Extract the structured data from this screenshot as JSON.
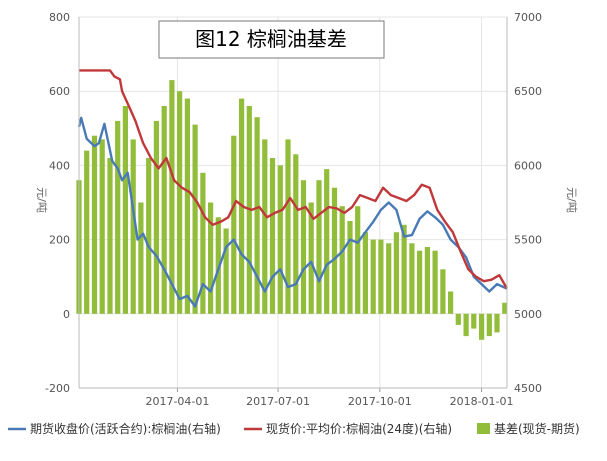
{
  "chart_data": {
    "type": "bar+line",
    "title": "图12 棕榈油基差",
    "y_left": {
      "label": "元/吨",
      "ylim": [
        -200,
        800
      ],
      "ticks": [
        -200,
        0,
        200,
        400,
        600,
        800
      ]
    },
    "y_right": {
      "label": "元/吨",
      "ylim": [
        4500,
        7000
      ],
      "ticks": [
        4500,
        5000,
        5500,
        6000,
        6500,
        7000
      ]
    },
    "x_axis": {
      "range": [
        "2017-01-02",
        "2018-01-24"
      ],
      "tick_labels": [
        "2017-04-01",
        "2017-07-01",
        "2017-10-01",
        "2018-01-01"
      ]
    },
    "grid": true,
    "legend_position": "bottom",
    "series": [
      {
        "name": "期货收盘价(活跃合约):棕榈油(右轴)",
        "type": "line",
        "axis": "right",
        "color": "#4a7ab5",
        "points": [
          [
            "2017-01-02",
            6260
          ],
          [
            "2017-01-04",
            6320
          ],
          [
            "2017-01-09",
            6180
          ],
          [
            "2017-01-16",
            6130
          ],
          [
            "2017-01-20",
            6150
          ],
          [
            "2017-01-25",
            6280
          ],
          [
            "2017-02-01",
            6030
          ],
          [
            "2017-02-06",
            5980
          ],
          [
            "2017-02-10",
            5900
          ],
          [
            "2017-02-15",
            5950
          ],
          [
            "2017-02-20",
            5700
          ],
          [
            "2017-02-24",
            5500
          ],
          [
            "2017-03-01",
            5540
          ],
          [
            "2017-03-06",
            5450
          ],
          [
            "2017-03-13",
            5390
          ],
          [
            "2017-03-20",
            5300
          ],
          [
            "2017-03-27",
            5200
          ],
          [
            "2017-04-03",
            5100
          ],
          [
            "2017-04-10",
            5120
          ],
          [
            "2017-04-17",
            5050
          ],
          [
            "2017-04-24",
            5200
          ],
          [
            "2017-05-01",
            5150
          ],
          [
            "2017-05-08",
            5300
          ],
          [
            "2017-05-15",
            5450
          ],
          [
            "2017-05-22",
            5500
          ],
          [
            "2017-05-29",
            5400
          ],
          [
            "2017-06-05",
            5350
          ],
          [
            "2017-06-12",
            5250
          ],
          [
            "2017-06-19",
            5150
          ],
          [
            "2017-06-26",
            5250
          ],
          [
            "2017-07-03",
            5300
          ],
          [
            "2017-07-10",
            5180
          ],
          [
            "2017-07-17",
            5200
          ],
          [
            "2017-07-24",
            5300
          ],
          [
            "2017-07-31",
            5350
          ],
          [
            "2017-08-07",
            5220
          ],
          [
            "2017-08-14",
            5330
          ],
          [
            "2017-08-21",
            5370
          ],
          [
            "2017-08-28",
            5420
          ],
          [
            "2017-09-04",
            5500
          ],
          [
            "2017-09-11",
            5480
          ],
          [
            "2017-09-18",
            5550
          ],
          [
            "2017-09-25",
            5620
          ],
          [
            "2017-10-02",
            5700
          ],
          [
            "2017-10-09",
            5750
          ],
          [
            "2017-10-16",
            5700
          ],
          [
            "2017-10-23",
            5520
          ],
          [
            "2017-10-30",
            5530
          ],
          [
            "2017-11-06",
            5640
          ],
          [
            "2017-11-13",
            5690
          ],
          [
            "2017-11-20",
            5650
          ],
          [
            "2017-11-27",
            5600
          ],
          [
            "2017-12-04",
            5500
          ],
          [
            "2017-12-11",
            5450
          ],
          [
            "2017-12-18",
            5380
          ],
          [
            "2017-12-25",
            5250
          ],
          [
            "2018-01-01",
            5200
          ],
          [
            "2018-01-08",
            5150
          ],
          [
            "2018-01-15",
            5200
          ],
          [
            "2018-01-24",
            5170
          ]
        ]
      },
      {
        "name": "现货价:平均价:棕榈油(24度)(右轴)",
        "type": "line",
        "axis": "right",
        "color": "#c0383a",
        "points": [
          [
            "2017-01-02",
            6640
          ],
          [
            "2017-01-30",
            6640
          ],
          [
            "2017-02-03",
            6600
          ],
          [
            "2017-02-08",
            6580
          ],
          [
            "2017-02-10",
            6500
          ],
          [
            "2017-02-16",
            6400
          ],
          [
            "2017-02-22",
            6300
          ],
          [
            "2017-03-01",
            6150
          ],
          [
            "2017-03-08",
            6050
          ],
          [
            "2017-03-15",
            5980
          ],
          [
            "2017-03-22",
            6050
          ],
          [
            "2017-03-29",
            5900
          ],
          [
            "2017-04-05",
            5850
          ],
          [
            "2017-04-12",
            5820
          ],
          [
            "2017-04-19",
            5750
          ],
          [
            "2017-04-26",
            5650
          ],
          [
            "2017-05-03",
            5600
          ],
          [
            "2017-05-10",
            5620
          ],
          [
            "2017-05-17",
            5650
          ],
          [
            "2017-05-24",
            5760
          ],
          [
            "2017-05-31",
            5720
          ],
          [
            "2017-06-07",
            5700
          ],
          [
            "2017-06-14",
            5720
          ],
          [
            "2017-06-21",
            5650
          ],
          [
            "2017-06-28",
            5680
          ],
          [
            "2017-07-05",
            5700
          ],
          [
            "2017-07-12",
            5780
          ],
          [
            "2017-07-19",
            5700
          ],
          [
            "2017-07-26",
            5720
          ],
          [
            "2017-08-02",
            5640
          ],
          [
            "2017-08-09",
            5680
          ],
          [
            "2017-08-16",
            5720
          ],
          [
            "2017-08-23",
            5710
          ],
          [
            "2017-08-30",
            5680
          ],
          [
            "2017-09-06",
            5720
          ],
          [
            "2017-09-13",
            5800
          ],
          [
            "2017-09-20",
            5780
          ],
          [
            "2017-09-27",
            5760
          ],
          [
            "2017-10-04",
            5850
          ],
          [
            "2017-10-11",
            5800
          ],
          [
            "2017-10-18",
            5780
          ],
          [
            "2017-10-25",
            5760
          ],
          [
            "2017-11-01",
            5800
          ],
          [
            "2017-11-08",
            5870
          ],
          [
            "2017-11-15",
            5850
          ],
          [
            "2017-11-22",
            5700
          ],
          [
            "2017-11-29",
            5620
          ],
          [
            "2017-12-06",
            5550
          ],
          [
            "2017-12-13",
            5420
          ],
          [
            "2017-12-20",
            5300
          ],
          [
            "2017-12-27",
            5250
          ],
          [
            "2018-01-03",
            5220
          ],
          [
            "2018-01-10",
            5230
          ],
          [
            "2018-01-17",
            5260
          ],
          [
            "2018-01-24",
            5170
          ]
        ]
      },
      {
        "name": "基差(现货-期货)",
        "type": "bar",
        "axis": "left",
        "color": "#92bd3a",
        "points": [
          [
            "2017-01-02",
            360
          ],
          [
            "2017-01-09",
            440
          ],
          [
            "2017-01-16",
            480
          ],
          [
            "2017-01-23",
            470
          ],
          [
            "2017-01-30",
            420
          ],
          [
            "2017-02-06",
            520
          ],
          [
            "2017-02-13",
            560
          ],
          [
            "2017-02-20",
            470
          ],
          [
            "2017-02-27",
            300
          ],
          [
            "2017-03-06",
            420
          ],
          [
            "2017-03-13",
            520
          ],
          [
            "2017-03-20",
            560
          ],
          [
            "2017-03-27",
            630
          ],
          [
            "2017-04-03",
            600
          ],
          [
            "2017-04-10",
            580
          ],
          [
            "2017-04-17",
            510
          ],
          [
            "2017-04-24",
            380
          ],
          [
            "2017-05-01",
            300
          ],
          [
            "2017-05-08",
            260
          ],
          [
            "2017-05-15",
            230
          ],
          [
            "2017-05-22",
            480
          ],
          [
            "2017-05-29",
            580
          ],
          [
            "2017-06-05",
            560
          ],
          [
            "2017-06-12",
            530
          ],
          [
            "2017-06-19",
            470
          ],
          [
            "2017-06-26",
            420
          ],
          [
            "2017-07-03",
            400
          ],
          [
            "2017-07-10",
            470
          ],
          [
            "2017-07-17",
            430
          ],
          [
            "2017-07-24",
            360
          ],
          [
            "2017-07-31",
            300
          ],
          [
            "2017-08-07",
            360
          ],
          [
            "2017-08-14",
            390
          ],
          [
            "2017-08-21",
            340
          ],
          [
            "2017-08-28",
            290
          ],
          [
            "2017-09-04",
            250
          ],
          [
            "2017-09-11",
            290
          ],
          [
            "2017-09-18",
            220
          ],
          [
            "2017-09-25",
            200
          ],
          [
            "2017-10-02",
            200
          ],
          [
            "2017-10-09",
            190
          ],
          [
            "2017-10-16",
            220
          ],
          [
            "2017-10-23",
            240
          ],
          [
            "2017-10-30",
            190
          ],
          [
            "2017-11-06",
            170
          ],
          [
            "2017-11-13",
            180
          ],
          [
            "2017-11-20",
            170
          ],
          [
            "2017-11-27",
            120
          ],
          [
            "2017-12-04",
            60
          ],
          [
            "2017-12-11",
            -30
          ],
          [
            "2017-12-18",
            -60
          ],
          [
            "2017-12-25",
            -40
          ],
          [
            "2018-01-01",
            -70
          ],
          [
            "2018-01-08",
            -60
          ],
          [
            "2018-01-15",
            -50
          ],
          [
            "2018-01-22",
            30
          ]
        ]
      }
    ]
  }
}
